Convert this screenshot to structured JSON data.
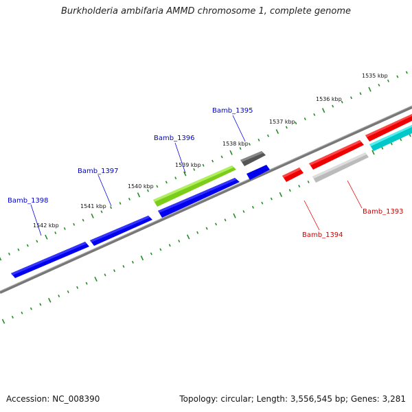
{
  "title": "Burkholderia ambifaria AMMD chromosome 1, complete genome",
  "footer": {
    "accession": "Accession: NC_008390",
    "summary": "Topology: circular; Length: 3,556,545 bp; Genes: 3,281"
  },
  "colors": {
    "backbone": "#808080",
    "ticks": "#228b22",
    "forward_gene": "#0000ee",
    "reverse_gene": "#ee0000",
    "forward_label": "#0000cc",
    "reverse_label": "#cc0000"
  },
  "scale_labels": [
    {
      "text": "1535 kbp",
      "kbp": 1535
    },
    {
      "text": "1536 kbp",
      "kbp": 1536
    },
    {
      "text": "1537 kbp",
      "kbp": 1537
    },
    {
      "text": "1538 kbp",
      "kbp": 1538
    },
    {
      "text": "1539 kbp",
      "kbp": 1539
    },
    {
      "text": "1540 kbp",
      "kbp": 1540
    },
    {
      "text": "1541 kbp",
      "kbp": 1541
    },
    {
      "text": "1542 kbp",
      "kbp": 1542
    }
  ],
  "gene_labels": [
    {
      "text": "Bamb_1398",
      "strand": "forward"
    },
    {
      "text": "Bamb_1397",
      "strand": "forward"
    },
    {
      "text": "Bamb_1396",
      "strand": "forward"
    },
    {
      "text": "Bamb_1395",
      "strand": "forward"
    },
    {
      "text": "Bamb_1394",
      "strand": "reverse"
    },
    {
      "text": "Bamb_1393",
      "strand": "reverse"
    }
  ],
  "features": [
    {
      "id": "bamb_1398",
      "strand": "forward",
      "color": "#0000ee"
    },
    {
      "id": "bamb_1397",
      "strand": "forward",
      "color": "#0000ee"
    },
    {
      "id": "bamb_1396",
      "strand": "forward",
      "color": "#0000ee"
    },
    {
      "id": "bamb_1395",
      "strand": "forward",
      "color": "#0000ee"
    },
    {
      "id": "green-feature",
      "strand": "forward",
      "color": "#88dd22"
    },
    {
      "id": "dark-feature",
      "strand": "forward",
      "color": "#555555"
    },
    {
      "id": "bamb_1394",
      "strand": "reverse",
      "color": "#ee0000"
    },
    {
      "id": "bamb_1393-red",
      "strand": "reverse",
      "color": "#ee0000"
    },
    {
      "id": "bamb_1393-grey",
      "strand": "reverse",
      "color": "#bbbbbb"
    },
    {
      "id": "far-red",
      "strand": "reverse",
      "color": "#ee0000"
    },
    {
      "id": "cyan-feature",
      "strand": "reverse",
      "color": "#00cccc"
    }
  ]
}
